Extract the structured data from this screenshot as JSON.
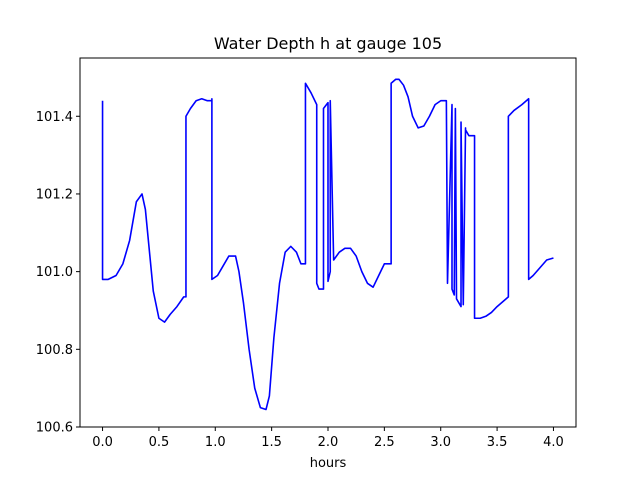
{
  "chart_data": {
    "type": "line",
    "title": "Water Depth h at gauge 105",
    "xlabel": "hours",
    "ylabel": "",
    "xlim": [
      -0.2,
      4.2
    ],
    "ylim": [
      100.6,
      101.55
    ],
    "xticks": [
      0.0,
      0.5,
      1.0,
      1.5,
      2.0,
      2.5,
      3.0,
      3.5,
      4.0
    ],
    "xtick_labels": [
      "0.0",
      "0.5",
      "1.0",
      "1.5",
      "2.0",
      "2.5",
      "3.0",
      "3.5",
      "4.0"
    ],
    "yticks": [
      100.6,
      100.8,
      101.0,
      101.2,
      101.4
    ],
    "ytick_labels": [
      "100.6",
      "100.8",
      "101.0",
      "101.2",
      "101.4"
    ],
    "grid": false,
    "series": [
      {
        "color": "#0000ff",
        "x": [
          0.0,
          0.0,
          0.05,
          0.12,
          0.18,
          0.24,
          0.3,
          0.35,
          0.38,
          0.41,
          0.45,
          0.5,
          0.55,
          0.6,
          0.66,
          0.72,
          0.74,
          0.74,
          0.78,
          0.83,
          0.88,
          0.93,
          0.97,
          0.97,
          0.97,
          1.02,
          1.07,
          1.12,
          1.18,
          1.21,
          1.25,
          1.3,
          1.35,
          1.4,
          1.45,
          1.48,
          1.52,
          1.57,
          1.62,
          1.67,
          1.72,
          1.76,
          1.8,
          1.8,
          1.85,
          1.9,
          1.9,
          1.92,
          1.96,
          1.96,
          2.0,
          2.0,
          2.02,
          2.02,
          2.05,
          2.1,
          2.15,
          2.2,
          2.25,
          2.3,
          2.35,
          2.4,
          2.45,
          2.5,
          2.56,
          2.56,
          2.6,
          2.63,
          2.67,
          2.71,
          2.75,
          2.8,
          2.85,
          2.9,
          2.95,
          3.0,
          3.05,
          3.06,
          3.06,
          3.1,
          3.1,
          3.12,
          3.13,
          3.14,
          3.18,
          3.18,
          3.2,
          3.22,
          3.22,
          3.25,
          3.3,
          3.3,
          3.35,
          3.4,
          3.45,
          3.5,
          3.6,
          3.6,
          3.65,
          3.72,
          3.78,
          3.78,
          3.82,
          3.88,
          3.94,
          4.0
        ],
        "y": [
          101.44,
          100.98,
          100.98,
          100.99,
          101.02,
          101.08,
          101.18,
          101.2,
          101.16,
          101.07,
          100.95,
          100.88,
          100.87,
          100.89,
          100.91,
          100.935,
          100.935,
          101.4,
          101.42,
          101.44,
          101.445,
          101.44,
          101.44,
          101.445,
          100.98,
          100.99,
          101.015,
          101.04,
          101.04,
          101.0,
          100.92,
          100.8,
          100.7,
          100.65,
          100.645,
          100.68,
          100.83,
          100.97,
          101.05,
          101.065,
          101.05,
          101.02,
          101.02,
          101.485,
          101.46,
          101.43,
          100.97,
          100.955,
          100.955,
          101.42,
          101.435,
          100.975,
          101.0,
          101.44,
          101.03,
          101.05,
          101.06,
          101.06,
          101.04,
          101.0,
          100.97,
          100.96,
          100.99,
          101.02,
          101.02,
          101.485,
          101.495,
          101.495,
          101.48,
          101.45,
          101.4,
          101.37,
          101.375,
          101.4,
          101.43,
          101.44,
          101.44,
          100.975,
          100.97,
          101.43,
          100.955,
          100.94,
          101.42,
          100.93,
          100.91,
          101.385,
          100.915,
          101.37,
          101.365,
          101.35,
          101.35,
          100.88,
          100.88,
          100.885,
          100.895,
          100.91,
          100.935,
          101.4,
          101.415,
          101.43,
          101.445,
          100.98,
          100.99,
          101.01,
          101.03,
          101.035
        ]
      }
    ]
  }
}
